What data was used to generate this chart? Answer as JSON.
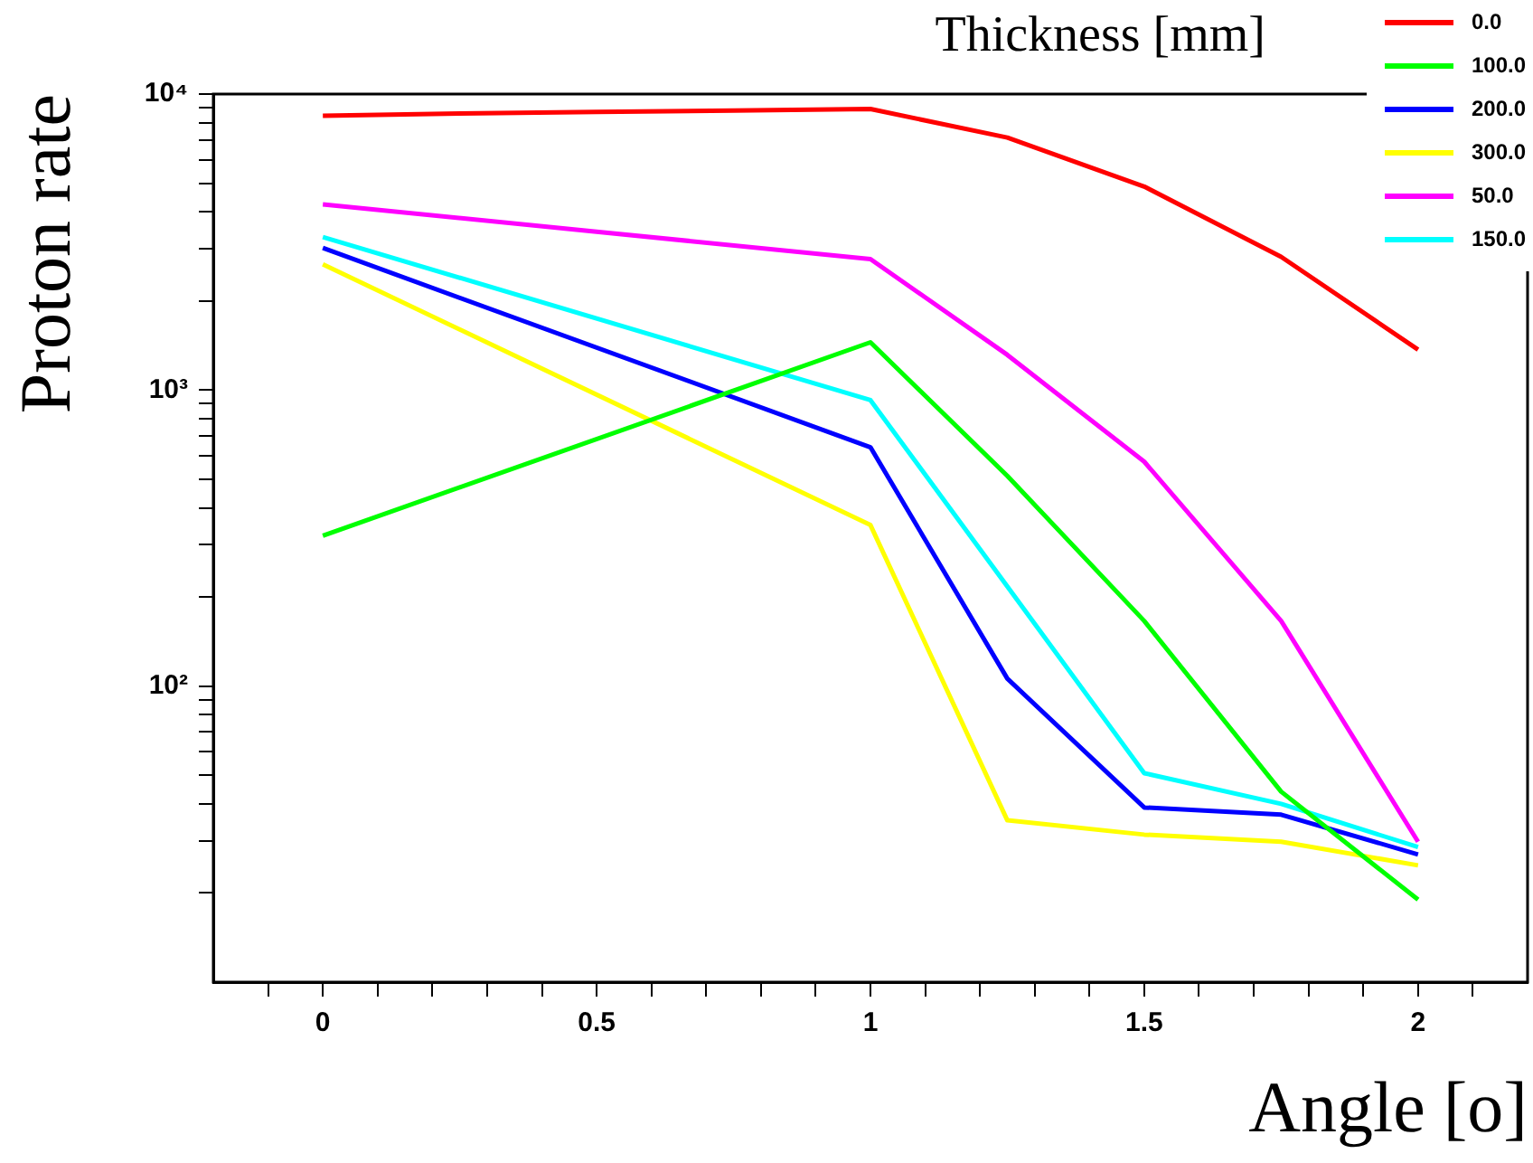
{
  "chart_data": {
    "type": "line",
    "xlabel": "Angle [o]",
    "ylabel": "Proton rate",
    "legend_title": "Thickness [mm]",
    "legend": "top right",
    "grid": false,
    "log": "y",
    "marker": "none",
    "line_style": "solid",
    "xlim": [
      -0.2,
      2.2
    ],
    "ylim": [
      10,
      10000
    ],
    "xticks": [
      {
        "value": -0.1,
        "label": null
      },
      0,
      {
        "value": 0.1,
        "label": null
      },
      {
        "value": 0.2,
        "label": null
      },
      {
        "value": 0.3,
        "label": null
      },
      {
        "value": 0.4,
        "label": null
      },
      0.5,
      {
        "value": 0.6,
        "label": null
      },
      {
        "value": 0.7,
        "label": null
      },
      {
        "value": 0.8,
        "label": null
      },
      {
        "value": 0.9,
        "label": null
      },
      1,
      {
        "value": 1.1,
        "label": null
      },
      {
        "value": 1.2,
        "label": null
      },
      {
        "value": 1.3,
        "label": null
      },
      {
        "value": 1.4,
        "label": null
      },
      1.5,
      {
        "value": 1.6,
        "label": null
      },
      {
        "value": 1.7,
        "label": null
      },
      {
        "value": 1.8,
        "label": null
      },
      {
        "value": 1.9,
        "label": null
      },
      2,
      {
        "value": 2.1,
        "label": null
      }
    ],
    "yticks": [
      {
        "value": 20,
        "label": null
      },
      {
        "value": 30,
        "label": null
      },
      {
        "value": 40,
        "label": null
      },
      {
        "value": 50,
        "label": null
      },
      {
        "value": 60,
        "label": null
      },
      {
        "value": 70,
        "label": null
      },
      {
        "value": 80,
        "label": null
      },
      {
        "value": 90,
        "label": null
      },
      {
        "value": 100,
        "label": "10²"
      },
      {
        "value": 200,
        "label": null
      },
      {
        "value": 300,
        "label": null
      },
      {
        "value": 400,
        "label": null
      },
      {
        "value": 500,
        "label": null
      },
      {
        "value": 600,
        "label": null
      },
      {
        "value": 700,
        "label": null
      },
      {
        "value": 800,
        "label": null
      },
      {
        "value": 900,
        "label": null
      },
      {
        "value": 1000,
        "label": "10³"
      },
      {
        "value": 2000,
        "label": null
      },
      {
        "value": 3000,
        "label": null
      },
      {
        "value": 4000,
        "label": null
      },
      {
        "value": 5000,
        "label": null
      },
      {
        "value": 6000,
        "label": null
      },
      {
        "value": 7000,
        "label": null
      },
      {
        "value": 8000,
        "label": null
      },
      {
        "value": 9000,
        "label": null
      },
      {
        "value": 10000,
        "label": "10⁴"
      }
    ],
    "x": [
      0,
      0.25,
      0.5,
      0.75,
      1,
      1.25,
      1.5,
      1.75,
      2
    ],
    "series": [
      {
        "name": "0.0",
        "color": "#ff0000",
        "values": [
          8450,
          8600,
          8700,
          8800,
          8900,
          7130,
          4870,
          2820,
          1370
        ]
      },
      {
        "name": "100.0",
        "color": "#00ff00",
        "values": [
          322,
          null,
          null,
          null,
          1450,
          513,
          166,
          44,
          19
        ]
      },
      {
        "name": "200.0",
        "color": "#0000ff",
        "values": [
          3020,
          null,
          null,
          null,
          641,
          106,
          38.9,
          36.8,
          27
        ]
      },
      {
        "name": "300.0",
        "color": "#ffff00",
        "values": [
          2660,
          null,
          null,
          null,
          350,
          35.2,
          31.5,
          29.8,
          24.8
        ]
      },
      {
        "name": "50.0",
        "color": "#ff00ff",
        "values": [
          4240,
          null,
          null,
          null,
          2770,
          1315,
          573,
          166,
          29.8
        ]
      },
      {
        "name": "150.0",
        "color": "#00ffff",
        "values": [
          3290,
          null,
          null,
          null,
          925,
          217,
          50.8,
          40,
          28.6
        ]
      }
    ]
  }
}
